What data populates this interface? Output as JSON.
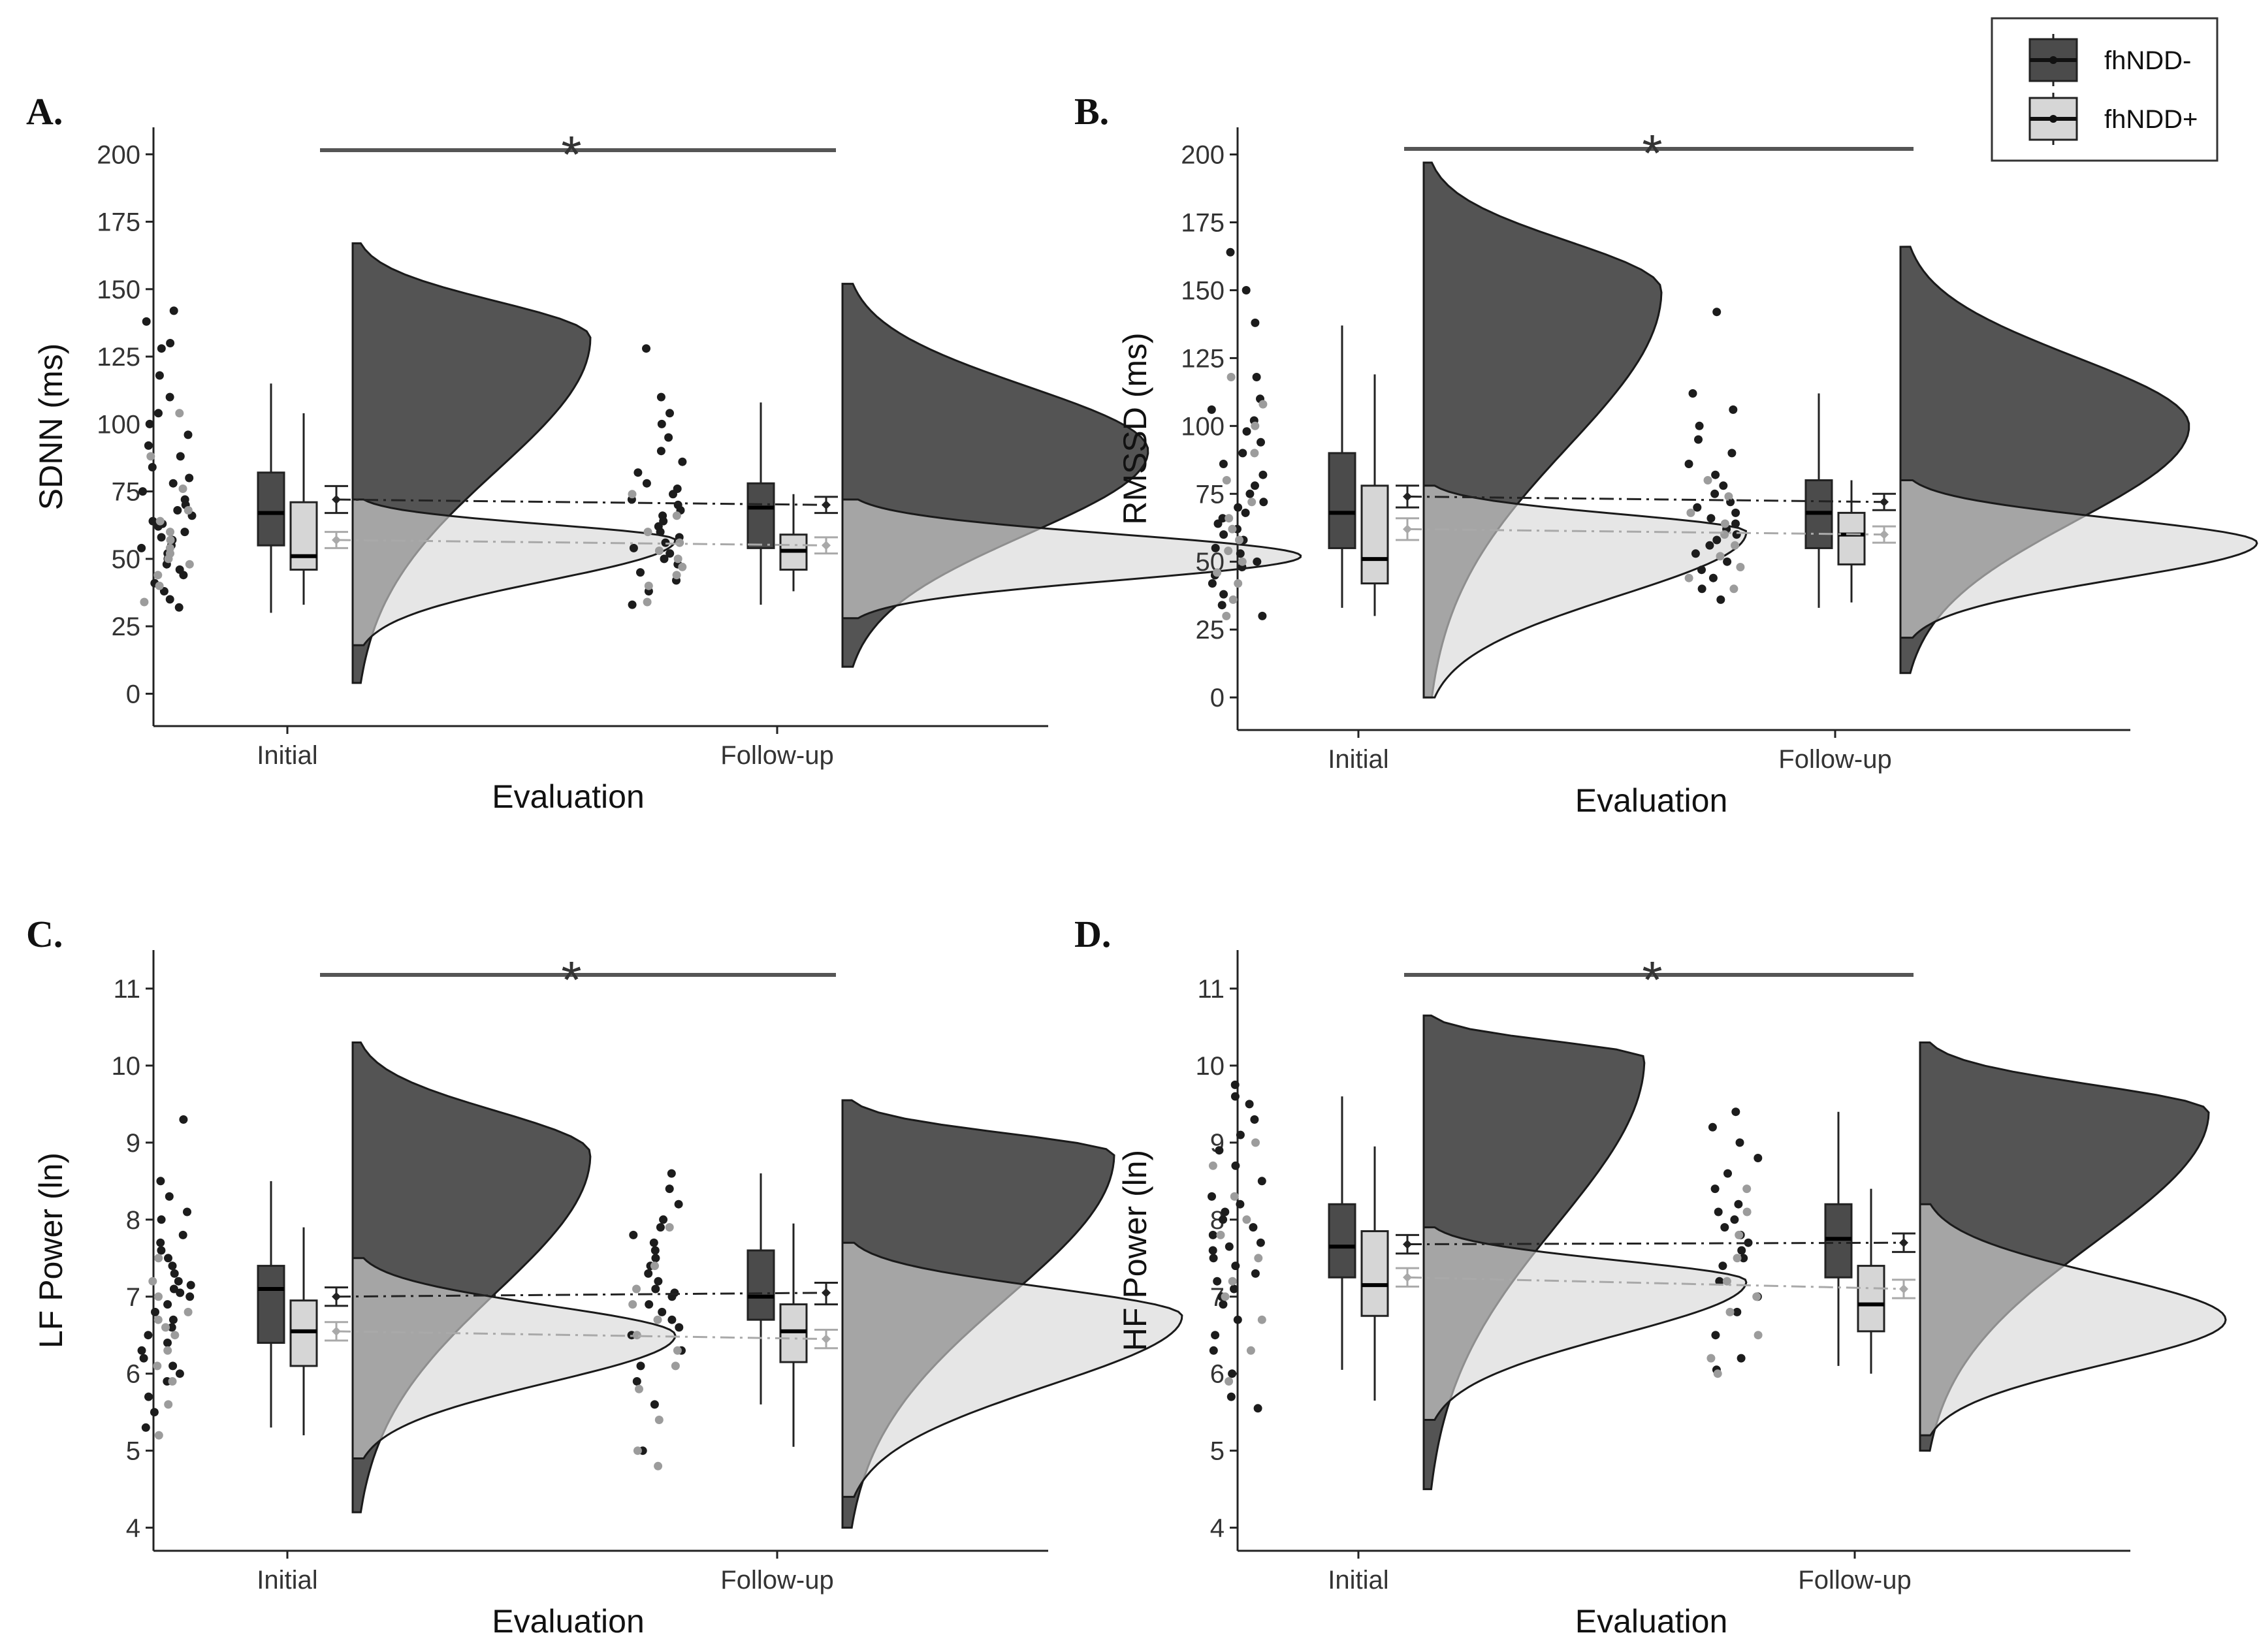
{
  "colors": {
    "group_neg": "#4b4b4b",
    "group_pos": "#d6d6d6",
    "dots_neg": "#1c1c1c",
    "dots_pos": "#9c9c9c",
    "line_neg": "#222222",
    "line_pos": "#a9a9a9",
    "sig_bar": "#555555"
  },
  "legend": {
    "items": [
      {
        "label": "fhNDD-"
      },
      {
        "label": "fhNDD+"
      }
    ]
  },
  "chart_data": [
    {
      "type": "raincloud",
      "panel": "A.",
      "ylabel": "SDNN (ms)",
      "xlabel": "Evaluation",
      "categories": [
        "Initial",
        "Follow-up"
      ],
      "ylim": [
        -12,
        210
      ],
      "yticks": [
        0,
        25,
        50,
        75,
        100,
        125,
        150,
        175,
        200
      ],
      "significance": "*",
      "series": [
        {
          "name": "fhNDD-",
          "box": [
            {
              "whisker_low": 30,
              "q1": 55,
              "median": 67,
              "q3": 82,
              "whisker_high": 115
            },
            {
              "whisker_low": 33,
              "q1": 54,
              "median": 69,
              "q3": 78,
              "whisker_high": 108
            }
          ],
          "mean": [
            72,
            70
          ],
          "ci": [
            [
              67,
              77
            ],
            [
              67,
              73
            ]
          ],
          "density": [
            {
              "lo": 4,
              "hi": 167,
              "peak": 132,
              "width": 0.7
            },
            {
              "lo": 10,
              "hi": 152,
              "peak": 90,
              "width": 0.9
            }
          ],
          "points": [
            [
              32,
              35,
              38,
              41,
              44,
              46,
              48,
              50,
              52,
              54,
              55,
              57,
              58,
              60,
              62,
              63,
              64,
              66,
              68,
              70,
              72,
              75,
              78,
              80,
              84,
              88,
              92,
              96,
              100,
              104,
              110,
              118,
              128,
              130,
              138,
              142
            ],
            [
              33,
              38,
              42,
              45,
              48,
              50,
              52,
              54,
              56,
              58,
              60,
              62,
              64,
              66,
              68,
              70,
              72,
              74,
              76,
              78,
              82,
              86,
              90,
              95,
              100,
              104,
              110,
              128
            ]
          ]
        },
        {
          "name": "fhNDD+",
          "box": [
            {
              "whisker_low": 33,
              "q1": 46,
              "median": 51,
              "q3": 71,
              "whisker_high": 104
            },
            {
              "whisker_low": 38,
              "q1": 46,
              "median": 53,
              "q3": 59,
              "whisker_high": 74
            }
          ],
          "mean": [
            57,
            55
          ],
          "ci": [
            [
              54,
              60
            ],
            [
              52,
              58
            ]
          ],
          "density": [
            {
              "lo": 18,
              "hi": 72,
              "peak": 57,
              "width": 0.95
            },
            {
              "lo": 28,
              "hi": 72,
              "peak": 51,
              "width": 1.35
            }
          ],
          "points": [
            [
              34,
              40,
              44,
              48,
              50,
              52,
              54,
              57,
              60,
              64,
              68,
              76,
              88,
              104
            ],
            [
              34,
              40,
              44,
              47,
              50,
              53,
              56,
              60,
              66,
              74
            ]
          ]
        }
      ]
    },
    {
      "type": "raincloud",
      "panel": "B.",
      "ylabel": "RMSSD (ms)",
      "xlabel": "Evaluation",
      "categories": [
        "Initial",
        "Follow-up"
      ],
      "ylim": [
        -12,
        210
      ],
      "yticks": [
        0,
        25,
        50,
        75,
        100,
        125,
        150,
        175,
        200
      ],
      "significance": "*",
      "series": [
        {
          "name": "fhNDD-",
          "box": [
            {
              "whisker_low": 33,
              "q1": 55,
              "median": 68,
              "q3": 90,
              "whisker_high": 137
            },
            {
              "whisker_low": 33,
              "q1": 55,
              "median": 68,
              "q3": 80,
              "whisker_high": 112
            }
          ],
          "mean": [
            74,
            72
          ],
          "ci": [
            [
              70,
              78
            ],
            [
              69,
              75
            ]
          ],
          "density": [
            {
              "lo": 0,
              "hi": 197,
              "peak": 150,
              "width": 0.7
            },
            {
              "lo": 9,
              "hi": 166,
              "peak": 100,
              "width": 0.85
            }
          ],
          "points": [
            [
              30,
              34,
              38,
              42,
              45,
              48,
              50,
              53,
              55,
              58,
              60,
              62,
              64,
              66,
              68,
              70,
              72,
              75,
              78,
              82,
              86,
              90,
              94,
              98,
              102,
              106,
              110,
              118,
              138,
              150,
              164
            ],
            [
              36,
              40,
              44,
              47,
              50,
              53,
              56,
              58,
              60,
              62,
              64,
              66,
              68,
              70,
              72,
              75,
              78,
              82,
              86,
              90,
              95,
              100,
              106,
              112,
              142
            ]
          ]
        },
        {
          "name": "fhNDD+",
          "box": [
            {
              "whisker_low": 30,
              "q1": 42,
              "median": 51,
              "q3": 78,
              "whisker_high": 119
            },
            {
              "whisker_low": 35,
              "q1": 49,
              "median": 60,
              "q3": 68,
              "whisker_high": 80
            }
          ],
          "mean": [
            62,
            60
          ],
          "ci": [
            [
              58,
              66
            ],
            [
              57,
              63
            ]
          ],
          "density": [
            {
              "lo": 0,
              "hi": 78,
              "peak": 61,
              "width": 0.95
            },
            {
              "lo": 22,
              "hi": 80,
              "peak": 57,
              "width": 1.05
            }
          ],
          "points": [
            [
              30,
              36,
              42,
              46,
              50,
              54,
              58,
              62,
              66,
              72,
              80,
              90,
              100,
              108,
              118
            ],
            [
              40,
              44,
              48,
              52,
              56,
              60,
              64,
              68,
              74,
              80
            ]
          ]
        }
      ]
    },
    {
      "type": "raincloud",
      "panel": "C.",
      "ylabel": "LF Power (ln)",
      "xlabel": "Evaluation",
      "categories": [
        "Initial",
        "Follow-up"
      ],
      "ylim": [
        3.7,
        11.5
      ],
      "yticks": [
        4,
        5,
        6,
        7,
        8,
        9,
        10,
        11
      ],
      "significance": "*",
      "series": [
        {
          "name": "fhNDD-",
          "box": [
            {
              "whisker_low": 5.3,
              "q1": 6.4,
              "median": 7.1,
              "q3": 7.4,
              "whisker_high": 8.5
            },
            {
              "whisker_low": 5.6,
              "q1": 6.7,
              "median": 7.0,
              "q3": 7.6,
              "whisker_high": 8.6
            }
          ],
          "mean": [
            7.0,
            7.05
          ],
          "ci": [
            [
              6.88,
              7.12
            ],
            [
              6.9,
              7.18
            ]
          ],
          "density": [
            {
              "lo": 4.2,
              "hi": 10.3,
              "peak": 8.85,
              "width": 0.7
            },
            {
              "lo": 4.0,
              "hi": 9.55,
              "peak": 8.85,
              "width": 0.8
            }
          ],
          "points": [
            [
              5.3,
              5.5,
              5.7,
              5.9,
              6.0,
              6.1,
              6.2,
              6.3,
              6.4,
              6.5,
              6.6,
              6.7,
              6.8,
              6.9,
              7.0,
              7.05,
              7.1,
              7.15,
              7.2,
              7.3,
              7.4,
              7.5,
              7.6,
              7.7,
              7.8,
              8.0,
              8.1,
              8.3,
              8.5,
              9.3
            ],
            [
              5.0,
              5.6,
              5.9,
              6.1,
              6.3,
              6.5,
              6.6,
              6.7,
              6.8,
              6.9,
              7.0,
              7.05,
              7.1,
              7.2,
              7.3,
              7.4,
              7.5,
              7.6,
              7.7,
              7.8,
              7.9,
              8.0,
              8.2,
              8.4,
              8.6
            ]
          ]
        },
        {
          "name": "fhNDD+",
          "box": [
            {
              "whisker_low": 5.2,
              "q1": 6.1,
              "median": 6.55,
              "q3": 6.95,
              "whisker_high": 7.9
            },
            {
              "whisker_low": 5.05,
              "q1": 6.15,
              "median": 6.55,
              "q3": 6.9,
              "whisker_high": 7.95
            }
          ],
          "mean": [
            6.55,
            6.45
          ],
          "ci": [
            [
              6.43,
              6.67
            ],
            [
              6.33,
              6.57
            ]
          ],
          "density": [
            {
              "lo": 4.9,
              "hi": 7.5,
              "peak": 6.5,
              "width": 0.95
            },
            {
              "lo": 4.4,
              "hi": 7.7,
              "peak": 6.75,
              "width": 1.0
            }
          ],
          "points": [
            [
              5.2,
              5.6,
              5.9,
              6.1,
              6.3,
              6.5,
              6.6,
              6.7,
              6.8,
              7.0,
              7.2,
              7.5
            ],
            [
              4.8,
              5.0,
              5.4,
              5.8,
              6.1,
              6.3,
              6.5,
              6.7,
              6.9,
              7.1,
              7.4,
              7.9
            ]
          ]
        }
      ]
    },
    {
      "type": "raincloud",
      "panel": "D.",
      "ylabel": "HF Power (ln)",
      "xlabel": "Evaluation",
      "categories": [
        "Initial",
        "Follow-up"
      ],
      "ylim": [
        3.7,
        11.5
      ],
      "yticks": [
        4,
        5,
        6,
        7,
        8,
        9,
        10,
        11
      ],
      "significance": "*",
      "series": [
        {
          "name": "fhNDD-",
          "box": [
            {
              "whisker_low": 6.05,
              "q1": 7.25,
              "median": 7.65,
              "q3": 8.2,
              "whisker_high": 9.6
            },
            {
              "whisker_low": 6.1,
              "q1": 7.25,
              "median": 7.75,
              "q3": 8.2,
              "whisker_high": 9.4
            }
          ],
          "mean": [
            7.68,
            7.7
          ],
          "ci": [
            [
              7.56,
              7.8
            ],
            [
              7.58,
              7.82
            ]
          ],
          "density": [
            {
              "lo": 4.5,
              "hi": 10.65,
              "peak": 10.1,
              "width": 0.65
            },
            {
              "lo": 5.0,
              "hi": 10.3,
              "peak": 9.4,
              "width": 0.85
            }
          ],
          "points": [
            [
              5.55,
              5.7,
              6.0,
              6.3,
              6.5,
              6.7,
              6.9,
              7.0,
              7.1,
              7.2,
              7.3,
              7.4,
              7.5,
              7.6,
              7.65,
              7.7,
              7.8,
              7.9,
              8.0,
              8.1,
              8.2,
              8.3,
              8.5,
              8.7,
              8.9,
              9.1,
              9.3,
              9.5,
              9.6,
              9.75
            ],
            [
              6.05,
              6.2,
              6.5,
              6.8,
              7.0,
              7.2,
              7.4,
              7.5,
              7.6,
              7.7,
              7.8,
              7.9,
              8.0,
              8.1,
              8.2,
              8.4,
              8.6,
              8.8,
              9.0,
              9.2,
              9.4
            ]
          ]
        },
        {
          "name": "fhNDD+",
          "box": [
            {
              "whisker_low": 5.65,
              "q1": 6.75,
              "median": 7.15,
              "q3": 7.85,
              "whisker_high": 8.95
            },
            {
              "whisker_low": 6.0,
              "q1": 6.55,
              "median": 6.9,
              "q3": 7.4,
              "whisker_high": 8.4
            }
          ],
          "mean": [
            7.25,
            7.1
          ],
          "ci": [
            [
              7.13,
              7.37
            ],
            [
              6.98,
              7.22
            ]
          ],
          "density": [
            {
              "lo": 5.4,
              "hi": 7.9,
              "peak": 7.2,
              "width": 0.95
            },
            {
              "lo": 5.2,
              "hi": 8.2,
              "peak": 6.7,
              "width": 0.9
            }
          ],
          "points": [
            [
              5.9,
              6.3,
              6.7,
              7.0,
              7.2,
              7.5,
              7.8,
              8.0,
              8.3,
              8.7,
              9.0
            ],
            [
              6.0,
              6.2,
              6.5,
              6.8,
              7.0,
              7.2,
              7.5,
              7.8,
              8.1,
              8.4
            ]
          ]
        }
      ]
    }
  ]
}
